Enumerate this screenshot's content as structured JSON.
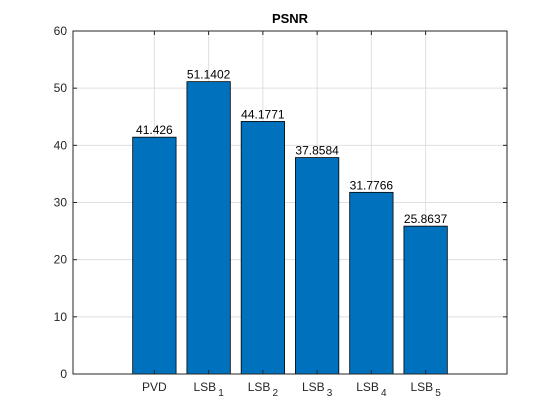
{
  "chart_data": {
    "type": "bar",
    "title": "PSNR",
    "xlabel": "",
    "ylabel": "",
    "categories": [
      {
        "base": "PVD",
        "sub": ""
      },
      {
        "base": "LSB",
        "sub": "1"
      },
      {
        "base": "LSB",
        "sub": "2"
      },
      {
        "base": "LSB",
        "sub": "3"
      },
      {
        "base": "LSB",
        "sub": "4"
      },
      {
        "base": "LSB",
        "sub": "5"
      }
    ],
    "values": [
      41.426,
      51.1402,
      44.1771,
      37.8584,
      31.7766,
      25.8637
    ],
    "data_labels": [
      "41.426",
      "51.1402",
      "44.1771",
      "37.8584",
      "31.7766",
      "25.8637"
    ],
    "ylim": [
      0,
      60
    ],
    "yticks": [
      0,
      10,
      20,
      30,
      40,
      50,
      60
    ],
    "grid": true,
    "legend": "none"
  },
  "colors": {
    "bar_fill": "#0072BD",
    "bar_edge": "#000000",
    "grid": "#dfdfdf",
    "axis": "#262626",
    "background": "#ffffff"
  }
}
